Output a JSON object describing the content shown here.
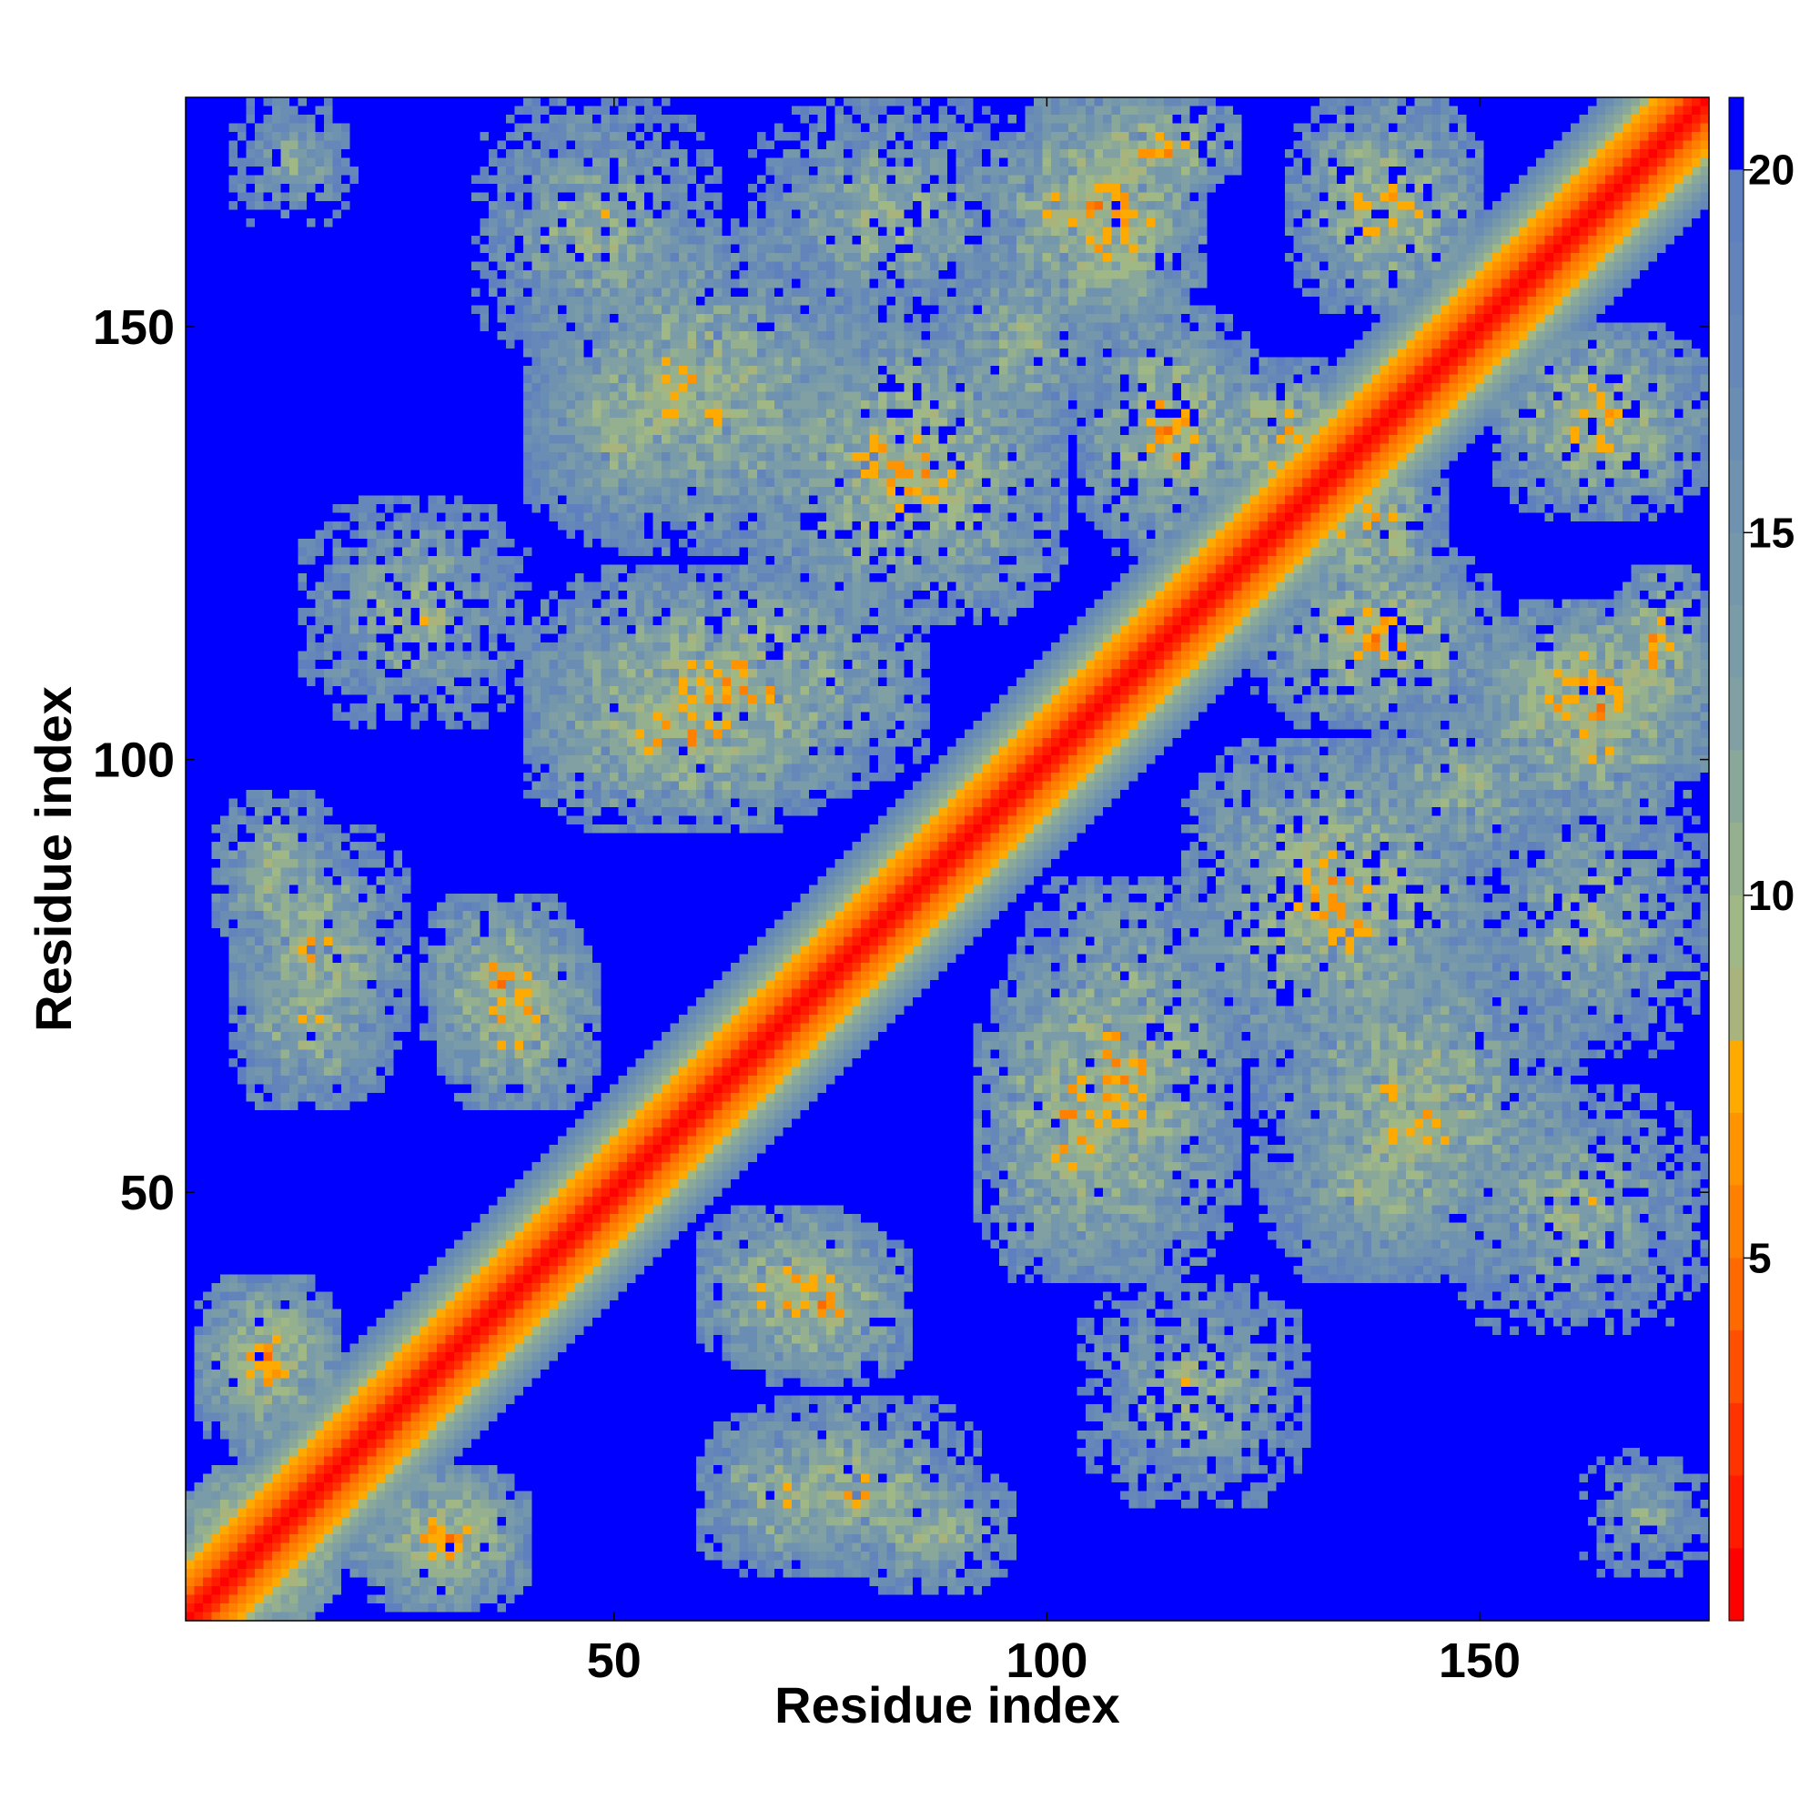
{
  "chart_data": {
    "type": "heatmap",
    "title": "",
    "xlabel": "Residue index",
    "ylabel": "Residue index",
    "n_residues": 176,
    "xlim": [
      1,
      176
    ],
    "ylim": [
      1,
      176
    ],
    "xticks": [
      50,
      100,
      150
    ],
    "yticks": [
      50,
      100,
      150
    ],
    "xtick_labels": [
      "50",
      "100",
      "150"
    ],
    "ytick_labels": [
      "50",
      "100",
      "150"
    ],
    "grid": false,
    "colorbar": {
      "range": [
        0,
        21
      ],
      "ticks": [
        5,
        10,
        15,
        20
      ],
      "tick_labels": [
        "5",
        "10",
        "15",
        "20"
      ],
      "levels": [
        {
          "max": 1,
          "color": "#ff0000"
        },
        {
          "max": 2,
          "color": "#ff1a00"
        },
        {
          "max": 3,
          "color": "#ff3300"
        },
        {
          "max": 4,
          "color": "#ff5000"
        },
        {
          "max": 5,
          "color": "#ff6a00"
        },
        {
          "max": 6,
          "color": "#ff8000"
        },
        {
          "max": 7,
          "color": "#ff9400"
        },
        {
          "max": 8,
          "color": "#ffaa00"
        },
        {
          "max": 9,
          "color": "#a9b47c"
        },
        {
          "max": 10,
          "color": "#9fb886"
        },
        {
          "max": 11,
          "color": "#94b08f"
        },
        {
          "max": 12,
          "color": "#8aa899"
        },
        {
          "max": 13,
          "color": "#80a0a4"
        },
        {
          "max": 14,
          "color": "#7a9ca8"
        },
        {
          "max": 15,
          "color": "#7497ac"
        },
        {
          "max": 16,
          "color": "#6e92b0"
        },
        {
          "max": 17,
          "color": "#6a8db4"
        },
        {
          "max": 18,
          "color": "#6688b8"
        },
        {
          "max": 19,
          "color": "#6384bb"
        },
        {
          "max": 20,
          "color": "#5f80be"
        },
        {
          "max": 21,
          "color": "#0000ff"
        }
      ]
    },
    "contact_blocks": [
      {
        "i": [
          1,
          18
        ],
        "j": [
          1,
          18
        ],
        "d": 6
      },
      {
        "i": [
          2,
          18
        ],
        "j": [
          22,
          40
        ],
        "d": 8
      },
      {
        "i": [
          20,
          40
        ],
        "j": [
          2,
          18
        ],
        "d": 8
      },
      {
        "i": [
          4,
          18
        ],
        "j": [
          78,
          96
        ],
        "d": 9
      },
      {
        "i": [
          64,
          92
        ],
        "j": [
          6,
          26
        ],
        "d": 9
      },
      {
        "i": [
          6,
          24
        ],
        "j": [
          60,
          78
        ],
        "d": 9
      },
      {
        "i": [
          30,
          48
        ],
        "j": [
          60,
          80
        ],
        "d": 8
      },
      {
        "i": [
          28,
          46
        ],
        "j": [
          64,
          84
        ],
        "d": 8
      },
      {
        "i": [
          40,
          76
        ],
        "j": [
          92,
          114
        ],
        "d": 8
      },
      {
        "i": [
          40,
          80
        ],
        "j": [
          124,
          162
        ],
        "d": 9
      },
      {
        "i": [
          96,
          122
        ],
        "j": [
          40,
          86
        ],
        "d": 8
      },
      {
        "i": [
          116,
          150
        ],
        "j": [
          66,
          102
        ],
        "d": 8
      },
      {
        "i": [
          128,
          146
        ],
        "j": [
          118,
          138
        ],
        "d": 8
      },
      {
        "i": [
          94,
          118
        ],
        "j": [
          150,
          176
        ],
        "d": 7
      },
      {
        "i": [
          104,
          122
        ],
        "j": [
          166,
          176
        ],
        "d": 7
      },
      {
        "i": [
          150,
          176
        ],
        "j": [
          100,
          116
        ],
        "d": 8
      },
      {
        "i": [
          124,
          152
        ],
        "j": [
          104,
          124
        ],
        "d": 8
      },
      {
        "i": [
          152,
          176
        ],
        "j": [
          128,
          150
        ],
        "d": 8
      },
      {
        "i": [
          130,
          152
        ],
        "j": [
          40,
          72
        ],
        "d": 10
      },
      {
        "i": [
          150,
          176
        ],
        "j": [
          66,
          98
        ],
        "d": 10
      },
      {
        "i": [
          146,
          176
        ],
        "j": [
          34,
          62
        ],
        "d": 10
      },
      {
        "i": [
          104,
          130
        ],
        "j": [
          14,
          40
        ],
        "d": 10
      },
      {
        "i": [
          88,
          106
        ],
        "j": [
          136,
          160
        ],
        "d": 10
      },
      {
        "i": [
          40,
          60
        ],
        "j": [
          126,
          150
        ],
        "d": 10
      },
      {
        "i": [
          6,
          20
        ],
        "j": [
          162,
          176
        ],
        "d": 11
      }
    ]
  }
}
